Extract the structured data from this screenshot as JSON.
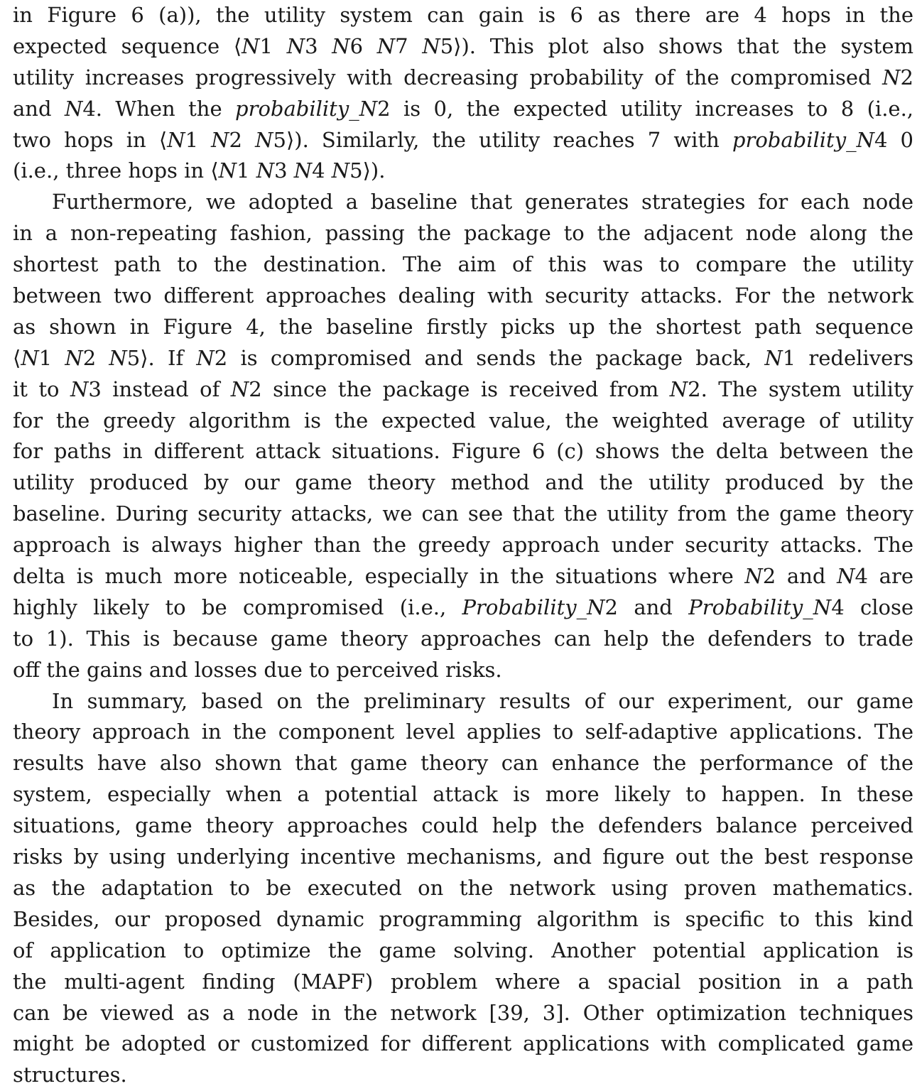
{
  "paragraphs": [
    {
      "indent": false,
      "lines": [
        [
          {
            "t": "in Figure 6 (a)), the utility system can gain is 6 as there are 4 hops in the"
          }
        ],
        [
          {
            "t": "expected sequence ⟨"
          },
          {
            "t": "N",
            "i": true
          },
          {
            "t": "1 "
          },
          {
            "t": "N",
            "i": true
          },
          {
            "t": "3 "
          },
          {
            "t": "N",
            "i": true
          },
          {
            "t": "6 "
          },
          {
            "t": "N",
            "i": true
          },
          {
            "t": "7  "
          },
          {
            "t": "N",
            "i": true
          },
          {
            "t": "5⟩). This plot also shows that the system"
          }
        ],
        [
          {
            "t": "utility increases progressively with decreasing probability of the compromised "
          },
          {
            "t": "N",
            "i": true
          },
          {
            "t": "2"
          }
        ],
        [
          {
            "t": "and "
          },
          {
            "t": "N",
            "i": true
          },
          {
            "t": "4. When the "
          },
          {
            "t": "probability_N",
            "i": true
          },
          {
            "t": "2 is 0, the expected utility increases to 8 (i.e.,"
          }
        ],
        [
          {
            "t": "two hops in ⟨"
          },
          {
            "t": "N",
            "i": true
          },
          {
            "t": "1 "
          },
          {
            "t": "N",
            "i": true
          },
          {
            "t": "2 "
          },
          {
            "t": "N",
            "i": true
          },
          {
            "t": "5⟩). Similarly, the utility reaches 7 with "
          },
          {
            "t": "probability_N",
            "i": true
          },
          {
            "t": "4 0"
          }
        ],
        [
          {
            "t": "(i.e., three hops in ⟨"
          },
          {
            "t": "N",
            "i": true
          },
          {
            "t": "1 "
          },
          {
            "t": "N",
            "i": true
          },
          {
            "t": "3 "
          },
          {
            "t": "N",
            "i": true
          },
          {
            "t": "4 "
          },
          {
            "t": "N",
            "i": true
          },
          {
            "t": "5⟩)."
          }
        ]
      ]
    },
    {
      "indent": true,
      "lines": [
        [
          {
            "t": "Furthermore, we adopted a baseline that generates strategies for each node"
          }
        ],
        [
          {
            "t": "in a non-repeating fashion, passing the package to the adjacent node along the"
          }
        ],
        [
          {
            "t": "shortest path to the destination. The aim of this was to compare the utility"
          }
        ],
        [
          {
            "t": "between two different approaches dealing with security attacks. For the network"
          }
        ],
        [
          {
            "t": "as shown in Figure 4, the baseline firstly picks up the shortest path sequence"
          }
        ],
        [
          {
            "t": "⟨"
          },
          {
            "t": "N",
            "i": true
          },
          {
            "t": "1 "
          },
          {
            "t": "N",
            "i": true
          },
          {
            "t": "2 "
          },
          {
            "t": "N",
            "i": true
          },
          {
            "t": "5⟩. If "
          },
          {
            "t": "N",
            "i": true
          },
          {
            "t": "2 is compromised and sends the package back, "
          },
          {
            "t": "N",
            "i": true
          },
          {
            "t": "1 redelivers"
          }
        ],
        [
          {
            "t": "it to "
          },
          {
            "t": "N",
            "i": true
          },
          {
            "t": "3 instead of "
          },
          {
            "t": "N",
            "i": true
          },
          {
            "t": "2 since the package is received from "
          },
          {
            "t": "N",
            "i": true
          },
          {
            "t": "2. The system utility"
          }
        ],
        [
          {
            "t": "for the greedy algorithm is the expected value, the weighted average of utility"
          }
        ],
        [
          {
            "t": "for paths in different attack situations. Figure 6 (c) shows the delta between the"
          }
        ],
        [
          {
            "t": "utility produced by our game theory method and the utility produced by the"
          }
        ],
        [
          {
            "t": "baseline. During security attacks, we can see that the utility from the game theory"
          }
        ],
        [
          {
            "t": "approach is always higher than the greedy approach under security attacks. The"
          }
        ],
        [
          {
            "t": "delta is much more noticeable, especially in the situations where "
          },
          {
            "t": "N",
            "i": true
          },
          {
            "t": "2 and "
          },
          {
            "t": "N",
            "i": true
          },
          {
            "t": "4 are"
          }
        ],
        [
          {
            "t": "highly likely to be compromised (i.e., "
          },
          {
            "t": "Probability_N",
            "i": true
          },
          {
            "t": "2 and "
          },
          {
            "t": "Probability_N",
            "i": true
          },
          {
            "t": "4 close"
          }
        ],
        [
          {
            "t": "to 1). This is because game theory approaches can help the defenders to trade"
          }
        ],
        [
          {
            "t": "off the gains and losses due to perceived risks."
          }
        ]
      ]
    },
    {
      "indent": true,
      "lines": [
        [
          {
            "t": "In summary, based on the preliminary results of our experiment, our game"
          }
        ],
        [
          {
            "t": "theory approach in the component level applies to self-adaptive applications. The"
          }
        ],
        [
          {
            "t": "results have also shown that game theory can enhance the performance of the"
          }
        ],
        [
          {
            "t": "system, especially when a potential attack is more likely to happen. In these"
          }
        ],
        [
          {
            "t": "situations, game theory approaches could help the defenders balance perceived"
          }
        ],
        [
          {
            "t": "risks by using underlying incentive mechanisms, and figure out the best response"
          }
        ],
        [
          {
            "t": "as the adaptation to be executed on the network using proven mathematics."
          }
        ],
        [
          {
            "t": "Besides, our proposed dynamic programming algorithm is specific to this kind"
          }
        ],
        [
          {
            "t": "of application to optimize the game solving. Another potential application is"
          }
        ],
        [
          {
            "t": "the multi-agent finding (MAPF) problem where a spacial position in a path"
          }
        ],
        [
          {
            "t": "can be viewed as a node in the network [39, 3]. Other optimization techniques"
          }
        ],
        [
          {
            "t": "might be adopted or customized for different applications with complicated game"
          }
        ],
        [
          {
            "t": "structures."
          }
        ]
      ]
    }
  ]
}
